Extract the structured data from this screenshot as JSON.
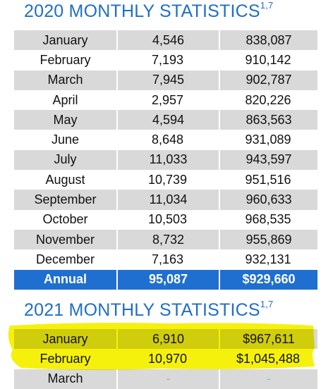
{
  "sections": [
    {
      "title": "2020 MONTHLY STATISTICS",
      "superscript": "1,7",
      "rows": [
        [
          "January",
          "4,546",
          "838,087"
        ],
        [
          "February",
          "7,193",
          "910,142"
        ],
        [
          "March",
          "7,945",
          "902,787"
        ],
        [
          "April",
          "2,957",
          "820,226"
        ],
        [
          "May",
          "4,594",
          "863,563"
        ],
        [
          "June",
          "8,648",
          "931,089"
        ],
        [
          "July",
          "11,033",
          "943,597"
        ],
        [
          "August",
          "10,739",
          "951,516"
        ],
        [
          "September",
          "11,034",
          "960,633"
        ],
        [
          "October",
          "10,503",
          "968,535"
        ],
        [
          "November",
          "8,732",
          "955,869"
        ],
        [
          "December",
          "7,163",
          "932,131"
        ]
      ],
      "total": [
        "Annual",
        "95,087",
        "$929,660"
      ]
    },
    {
      "title": "2021 MONTHLY STATISTICS",
      "superscript": "1,7",
      "rows": [
        [
          "January",
          "6,910",
          "$967,611"
        ],
        [
          "February",
          "10,970",
          "$1,045,488"
        ],
        [
          "March",
          "-",
          "-"
        ]
      ]
    }
  ]
}
